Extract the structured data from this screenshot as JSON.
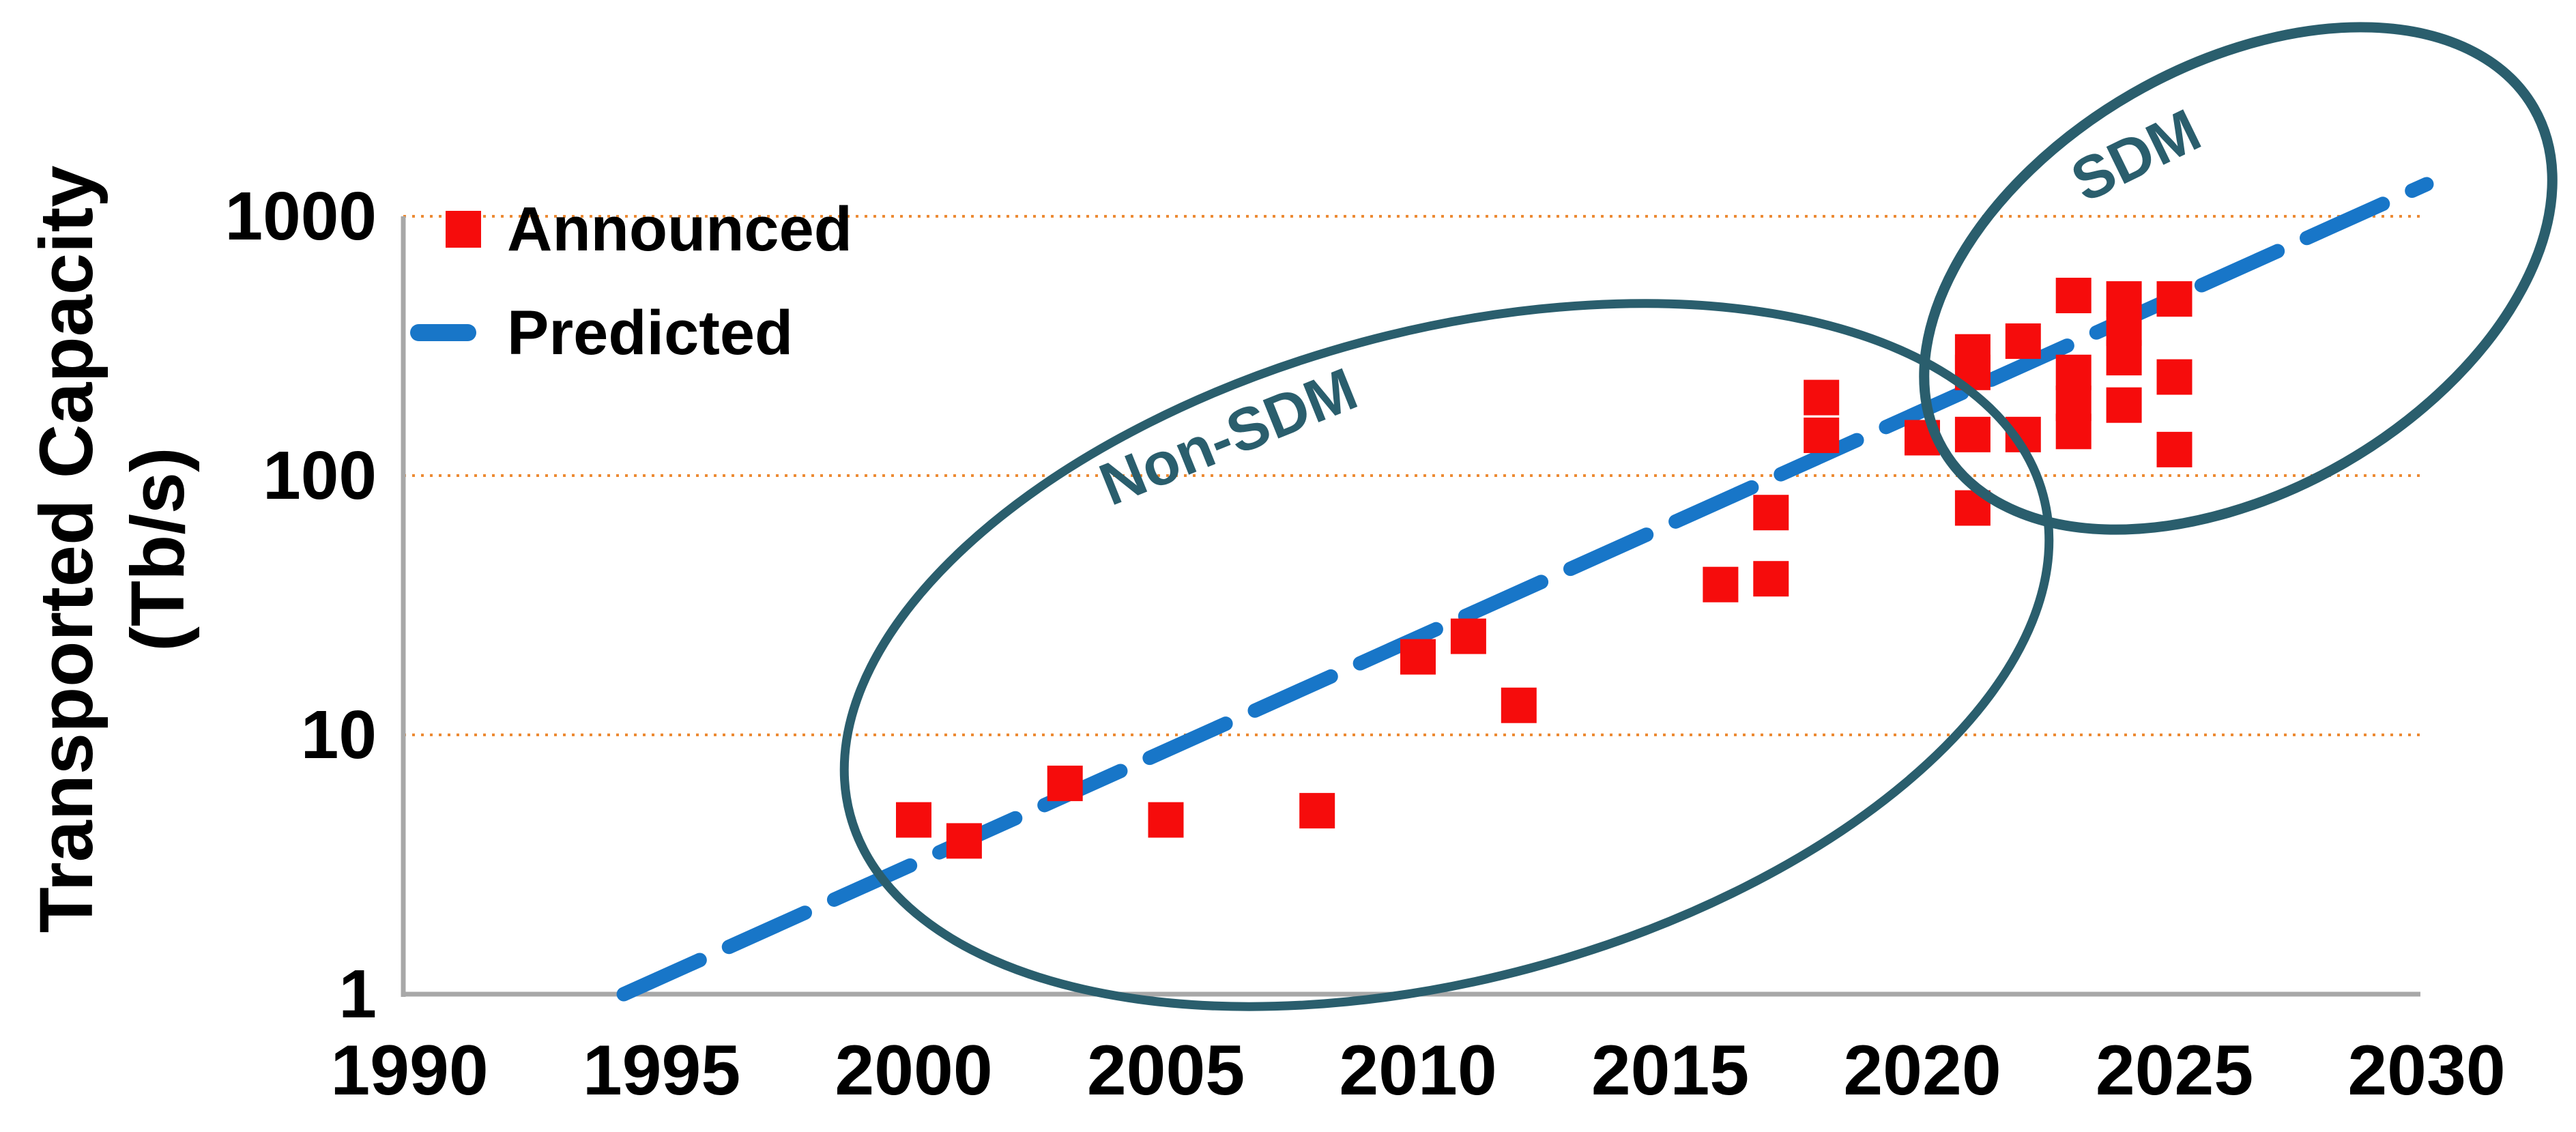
{
  "chart_data": {
    "type": "scatter",
    "title": "",
    "ylabel": "Transported Capacity (Tb/s)",
    "ylabel_lines": [
      "Transported Capacity",
      "(Tb/s)"
    ],
    "xlabel": "",
    "y_scale": "log10",
    "x_range": [
      1990,
      2030
    ],
    "y_range": [
      1,
      1000
    ],
    "x_ticks": [
      "1990",
      "1995",
      "2000",
      "2005",
      "2010",
      "2015",
      "2020",
      "2025",
      "2030"
    ],
    "x_tick_values": [
      1990,
      1995,
      2000,
      2005,
      2010,
      2015,
      2020,
      2025,
      2030
    ],
    "y_ticks": [
      "1",
      "10",
      "100",
      "1000"
    ],
    "y_tick_values": [
      1,
      10,
      100,
      1000
    ],
    "y_gridline_values": [
      10,
      100,
      1000
    ],
    "grid": "horizontal dotted lines at each decade",
    "legend_position": "top-left",
    "legend": [
      {
        "label": "Announced",
        "marker": "red-square"
      },
      {
        "label": "Predicted",
        "marker": "blue-dashed-line"
      }
    ],
    "series": [
      {
        "name": "Announced",
        "type": "scatter",
        "marker": "square",
        "color": "#F60C0C",
        "points": [
          [
            2000,
            4.7
          ],
          [
            2001,
            3.9
          ],
          [
            2003,
            6.5
          ],
          [
            2005,
            4.7
          ],
          [
            2008,
            5.1
          ],
          [
            2010,
            20
          ],
          [
            2011,
            24
          ],
          [
            2012,
            13
          ],
          [
            2016,
            38
          ],
          [
            2017,
            40
          ],
          [
            2017,
            72
          ],
          [
            2018,
            200
          ],
          [
            2018,
            143
          ],
          [
            2020,
            140
          ],
          [
            2021,
            300
          ],
          [
            2021,
            250
          ],
          [
            2021,
            144
          ],
          [
            2021,
            75
          ],
          [
            2022,
            330
          ],
          [
            2022,
            144
          ],
          [
            2023,
            495
          ],
          [
            2023,
            250
          ],
          [
            2023,
            190
          ],
          [
            2023,
            148
          ],
          [
            2024,
            480
          ],
          [
            2024,
            370
          ],
          [
            2024,
            285
          ],
          [
            2024,
            187
          ],
          [
            2025,
            480
          ],
          [
            2025,
            240
          ],
          [
            2025,
            126
          ]
        ]
      },
      {
        "name": "Predicted",
        "type": "line",
        "style": "dashed",
        "color": "#1876C8",
        "points": [
          [
            1994.25,
            1
          ],
          [
            2030,
            1330
          ]
        ]
      }
    ],
    "annotations": [
      {
        "label": "Non-SDM",
        "shape": "ellipse",
        "color": "#2A5E6D"
      },
      {
        "label": "SDM",
        "shape": "ellipse",
        "color": "#2A5E6D"
      }
    ]
  },
  "colors": {
    "announced_red": "#F60C0C",
    "predicted_blue": "#1876C8",
    "ellipse_teal": "#2A5E6D",
    "gridline_orange": "#EC8A33",
    "axis_gray": "#A8A8A8",
    "text_black": "#000000",
    "background": "#FFFFFF"
  }
}
